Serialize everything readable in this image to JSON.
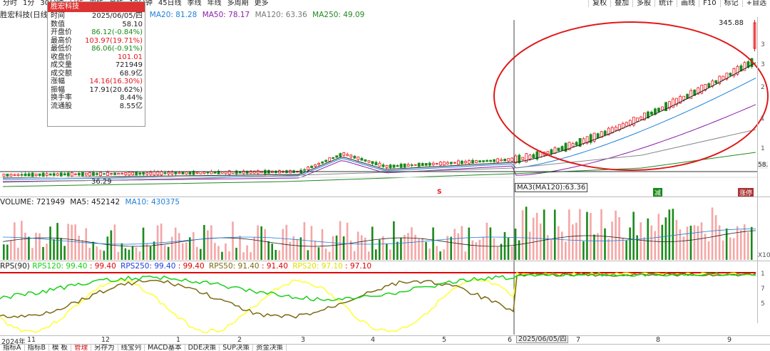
{
  "colors": {
    "up": "#e8141a",
    "down": "#1a8a1a",
    "ma5": "#222222",
    "ma20": "#1e7fd8",
    "ma50": "#8a1ea8",
    "ma120": "#888888",
    "ma250": "#228822",
    "ellipse": "#e01818",
    "rps120": "#19d019",
    "rps250": "#f0f020",
    "rps50": "#7a6a10",
    "rps20": "#ffff33",
    "rps_base": "#e00000"
  },
  "top_tabs": [
    {
      "label": "分时",
      "active": false
    },
    {
      "label": "1分",
      "active": false
    },
    {
      "label": "30分钟",
      "active": false
    },
    {
      "label": "日线",
      "active": true
    },
    {
      "label": "周线",
      "active": false
    },
    {
      "label": "月线",
      "active": false
    },
    {
      "label": "10分钟",
      "active": false
    },
    {
      "label": "45日线",
      "active": false
    },
    {
      "label": "季线",
      "active": false
    },
    {
      "label": "年线",
      "active": false
    },
    {
      "label": "多周期",
      "active": false
    },
    {
      "label": "更多",
      "active": false
    }
  ],
  "right_tools": [
    "复权",
    "叠加",
    "多股",
    "统计",
    "画线",
    "F10",
    "标记",
    "+自选"
  ],
  "ma_header": {
    "stock": "胜宏科技(日线",
    "ma20": "MA20: 81.28",
    "ma50": "MA50: 78.17",
    "ma120": "MA120: 63.36",
    "ma250": "MA250: 49.09"
  },
  "info_panel": {
    "title": "胜宏科技",
    "rows": [
      {
        "label": "时间",
        "value": "2025/06/05/四",
        "color": "#222222"
      },
      {
        "label": "数值",
        "value": "58.10",
        "color": "#222222"
      },
      {
        "label": "开盘价",
        "value": "86.12(-0.84%)",
        "color": "#1a8a1a"
      },
      {
        "label": "最高价",
        "value": "103.97(19.71%)",
        "color": "#e8141a"
      },
      {
        "label": "最低价",
        "value": "86.06(-0.91%)",
        "color": "#1a8a1a"
      },
      {
        "label": "收盘价",
        "value": "101.01",
        "color": "#e8141a"
      },
      {
        "label": "成交量",
        "value": "721949",
        "color": "#222222"
      },
      {
        "label": "成交额",
        "value": "68.9亿",
        "color": "#222222"
      },
      {
        "label": "涨幅",
        "value": "14.16(16.30%)",
        "color": "#e8141a"
      },
      {
        "label": "振幅",
        "value": "17.91(20.62%)",
        "color": "#222222"
      },
      {
        "label": "换手率",
        "value": "8.44%",
        "color": "#222222"
      },
      {
        "label": "流通股",
        "value": "8.55亿",
        "color": "#222222"
      }
    ]
  },
  "price_labels": {
    "high": "345.88",
    "low": "36.29",
    "right_value": "58.1",
    "crosshair_tip": "MA3(MA120):63.36"
  },
  "markers": {
    "s_marker": "S",
    "right_m1": "减",
    "right_m2": "涨停"
  },
  "volume_header": {
    "label": "VOLUME: 721949",
    "ma5": "MA5: 452142",
    "ma10": "MA10: 430375"
  },
  "rps_header": {
    "label": "RPS(90)",
    "rps120": "RPS120: 99.40",
    "rps120b": ": 99.40",
    "rps250": "RPS250: 99.40",
    "rps250b": ": 99.40",
    "rps50": "RPS50: 91.40",
    "rps50b": ": 91.40",
    "rps20": "RPS20: 97.10",
    "rps20b": ": 97.10"
  },
  "axis_right": {
    "price_ticks": [
      "3",
      "3",
      "2",
      "1",
      "1",
      "58."
    ],
    "vol_tick": "X10",
    "rps_ticks": [
      "1",
      "7",
      "5"
    ]
  },
  "time_axis": {
    "labels": [
      "2024年",
      "11",
      "12",
      "1",
      "2",
      "3",
      "4",
      "5",
      "6",
      "7",
      "8",
      "9"
    ],
    "cursor_date": "2025/06/05/四"
  },
  "bottom_tabs": [
    {
      "label": "指标A",
      "active": false
    },
    {
      "label": "指标B",
      "active": false
    },
    {
      "label": "模 板",
      "active": false
    },
    {
      "label": "管理",
      "active": true
    },
    {
      "label": "另存为",
      "active": false
    },
    {
      "label": "线宝列",
      "active": false
    },
    {
      "label": "MACD基本",
      "active": false
    },
    {
      "label": "DDE决策",
      "active": false
    },
    {
      "label": "SUP决策",
      "active": false
    },
    {
      "label": "资金决策",
      "active": false
    }
  ]
}
